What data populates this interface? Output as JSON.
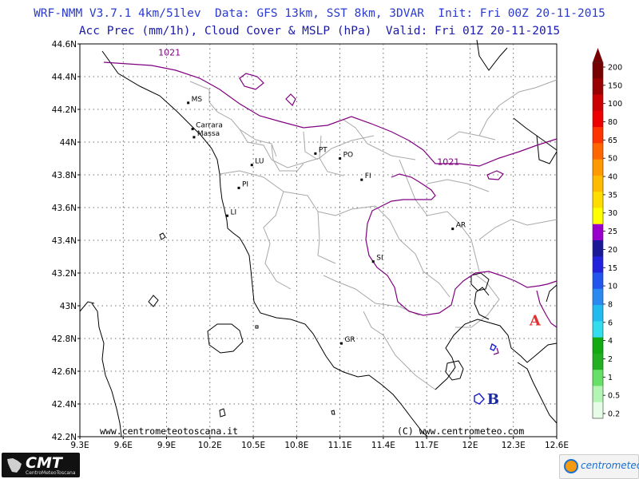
{
  "header": {
    "line1": "WRF-NMM V3.7.1 4km/51lev  Data: GFS 13km, SST 8km, 3DVAR  Init: Fri 00Z 20-11-2015",
    "line2": "Acc Prec (mm/1h), Cloud Cover & MSLP (hPa)  Valid: Fri 01Z 20-11-2015"
  },
  "axes": {
    "lat_labels": [
      "44.6N",
      "44.4N",
      "44.2N",
      "44N",
      "43.8N",
      "43.6N",
      "43.4N",
      "43.2N",
      "43N",
      "42.8N",
      "42.6N",
      "42.4N",
      "42.2N"
    ],
    "lon_labels": [
      "9.3E",
      "9.6E",
      "9.9E",
      "10.2E",
      "10.5E",
      "10.8E",
      "11.1E",
      "11.4E",
      "11.7E",
      "12E",
      "12.3E",
      "12.6E"
    ]
  },
  "cities": [
    {
      "label": "MS",
      "lon": 10.05,
      "lat": 44.24
    },
    {
      "label": "Carrara",
      "lon": 10.08,
      "lat": 44.08
    },
    {
      "label": "Massa",
      "lon": 10.09,
      "lat": 44.03
    },
    {
      "label": "LU",
      "lon": 10.49,
      "lat": 43.86
    },
    {
      "label": "PT",
      "lon": 10.93,
      "lat": 43.93
    },
    {
      "label": "PO",
      "lon": 11.1,
      "lat": 43.9
    },
    {
      "label": "FI",
      "lon": 11.25,
      "lat": 43.77
    },
    {
      "label": "PI",
      "lon": 10.4,
      "lat": 43.72
    },
    {
      "label": "LI",
      "lon": 10.32,
      "lat": 43.55
    },
    {
      "label": "AR",
      "lon": 11.88,
      "lat": 43.47
    },
    {
      "label": "SI",
      "lon": 11.33,
      "lat": 43.27
    },
    {
      "label": "GR",
      "lon": 11.11,
      "lat": 42.77
    }
  ],
  "isobars": [
    {
      "label": "1021",
      "lon": 9.92,
      "lat": 44.53
    },
    {
      "label": "1021",
      "lon": 11.85,
      "lat": 43.86
    }
  ],
  "pressure_centers": [
    {
      "label": "A",
      "lon": 12.45,
      "lat": 42.88,
      "color": "#e03030"
    },
    {
      "label": "B",
      "lon": 12.16,
      "lat": 42.4,
      "color": "#1a2a9a"
    }
  ],
  "credits": {
    "left": "www.centrometeotoscana.it",
    "right": "(C) www.centrometeo.com"
  },
  "legend": {
    "labels": [
      "0.2",
      "0.5",
      "1",
      "2",
      "4",
      "6",
      "8",
      "10",
      "15",
      "20",
      "25",
      "30",
      "35",
      "40",
      "50",
      "65",
      "80",
      "100",
      "150",
      "200"
    ],
    "colors": [
      "#e6fce6",
      "#b3f5b3",
      "#66e066",
      "#22b022",
      "#11aa11",
      "#33ddee",
      "#22bbf0",
      "#2a8af0",
      "#2255ee",
      "#2222dd",
      "#1a1a99",
      "#9900cc",
      "#ffff00",
      "#ffdd00",
      "#ffbb00",
      "#ff9900",
      "#ff6600",
      "#ff3300",
      "#ee0000",
      "#cc0000",
      "#990000",
      "#770000"
    ]
  },
  "logos": {
    "left_big": "CMT",
    "left_small": "CentroMeteoToscana",
    "right": "centrometeo"
  }
}
